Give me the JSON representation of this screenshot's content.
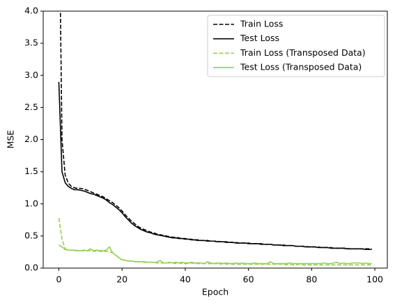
{
  "chart_data": {
    "type": "line",
    "xlabel": "Epoch",
    "ylabel": "MSE",
    "x": [
      0,
      1,
      2,
      3,
      4,
      5,
      6,
      7,
      8,
      9,
      10,
      11,
      12,
      13,
      14,
      15,
      16,
      17,
      18,
      19,
      20,
      21,
      22,
      23,
      24,
      25,
      26,
      27,
      28,
      29,
      30,
      31,
      32,
      33,
      34,
      35,
      36,
      37,
      38,
      39,
      40,
      41,
      42,
      43,
      44,
      45,
      46,
      47,
      48,
      49,
      50,
      51,
      52,
      53,
      54,
      55,
      56,
      57,
      58,
      59,
      60,
      61,
      62,
      63,
      64,
      65,
      66,
      67,
      68,
      69,
      70,
      71,
      72,
      73,
      74,
      75,
      76,
      77,
      78,
      79,
      80,
      81,
      82,
      83,
      84,
      85,
      86,
      87,
      88,
      89,
      90,
      91,
      92,
      93,
      94,
      95,
      96,
      97,
      98,
      99
    ],
    "series": [
      {
        "name": "Train Loss",
        "color": "#000000",
        "dashed": true,
        "values": [
          6.0,
          2.0,
          1.45,
          1.32,
          1.27,
          1.25,
          1.24,
          1.24,
          1.23,
          1.21,
          1.19,
          1.17,
          1.15,
          1.13,
          1.11,
          1.08,
          1.05,
          1.02,
          0.98,
          0.94,
          0.89,
          0.83,
          0.78,
          0.73,
          0.69,
          0.65,
          0.62,
          0.6,
          0.58,
          0.56,
          0.55,
          0.53,
          0.52,
          0.51,
          0.5,
          0.49,
          0.48,
          0.48,
          0.47,
          0.46,
          0.46,
          0.45,
          0.45,
          0.44,
          0.44,
          0.43,
          0.43,
          0.43,
          0.42,
          0.42,
          0.42,
          0.41,
          0.41,
          0.41,
          0.4,
          0.4,
          0.4,
          0.39,
          0.39,
          0.39,
          0.39,
          0.38,
          0.38,
          0.38,
          0.38,
          0.37,
          0.37,
          0.37,
          0.36,
          0.36,
          0.36,
          0.36,
          0.35,
          0.35,
          0.35,
          0.34,
          0.34,
          0.34,
          0.34,
          0.33,
          0.33,
          0.33,
          0.33,
          0.32,
          0.32,
          0.32,
          0.32,
          0.31,
          0.31,
          0.31,
          0.31,
          0.31,
          0.3,
          0.3,
          0.3,
          0.3,
          0.3,
          0.3,
          0.3,
          0.3
        ]
      },
      {
        "name": "Test Loss",
        "color": "#000000",
        "dashed": false,
        "values": [
          2.9,
          1.5,
          1.33,
          1.27,
          1.24,
          1.22,
          1.22,
          1.21,
          1.2,
          1.18,
          1.16,
          1.15,
          1.13,
          1.11,
          1.09,
          1.06,
          1.02,
          0.99,
          0.95,
          0.91,
          0.86,
          0.8,
          0.75,
          0.7,
          0.66,
          0.63,
          0.6,
          0.58,
          0.56,
          0.55,
          0.53,
          0.52,
          0.51,
          0.5,
          0.49,
          0.48,
          0.47,
          0.47,
          0.46,
          0.46,
          0.45,
          0.45,
          0.44,
          0.44,
          0.43,
          0.43,
          0.43,
          0.42,
          0.42,
          0.42,
          0.41,
          0.41,
          0.41,
          0.4,
          0.4,
          0.4,
          0.39,
          0.39,
          0.39,
          0.39,
          0.38,
          0.38,
          0.38,
          0.38,
          0.37,
          0.37,
          0.37,
          0.37,
          0.36,
          0.36,
          0.36,
          0.35,
          0.35,
          0.35,
          0.35,
          0.34,
          0.34,
          0.34,
          0.33,
          0.33,
          0.33,
          0.33,
          0.32,
          0.32,
          0.32,
          0.32,
          0.31,
          0.31,
          0.31,
          0.31,
          0.31,
          0.3,
          0.3,
          0.3,
          0.3,
          0.3,
          0.3,
          0.29,
          0.29,
          0.29
        ]
      },
      {
        "name": "Train Loss (Transposed Data)",
        "color": "#92d050",
        "dashed": true,
        "values": [
          0.78,
          0.45,
          0.3,
          0.28,
          0.28,
          0.27,
          0.27,
          0.27,
          0.27,
          0.27,
          0.27,
          0.26,
          0.27,
          0.26,
          0.26,
          0.26,
          0.25,
          0.24,
          0.2,
          0.16,
          0.13,
          0.12,
          0.11,
          0.11,
          0.1,
          0.1,
          0.1,
          0.09,
          0.09,
          0.09,
          0.09,
          0.08,
          0.08,
          0.08,
          0.08,
          0.08,
          0.08,
          0.07,
          0.08,
          0.07,
          0.07,
          0.07,
          0.08,
          0.07,
          0.07,
          0.07,
          0.07,
          0.07,
          0.07,
          0.07,
          0.07,
          0.06,
          0.07,
          0.06,
          0.07,
          0.06,
          0.06,
          0.06,
          0.06,
          0.06,
          0.06,
          0.06,
          0.06,
          0.06,
          0.06,
          0.06,
          0.06,
          0.06,
          0.06,
          0.06,
          0.06,
          0.06,
          0.05,
          0.06,
          0.05,
          0.05,
          0.06,
          0.05,
          0.05,
          0.05,
          0.05,
          0.05,
          0.05,
          0.05,
          0.05,
          0.05,
          0.05,
          0.05,
          0.05,
          0.05,
          0.05,
          0.05,
          0.05,
          0.05,
          0.05,
          0.05,
          0.05,
          0.05,
          0.05,
          0.05
        ]
      },
      {
        "name": "Test Loss (Transposed Data)",
        "color": "#92d050",
        "dashed": false,
        "values": [
          0.36,
          0.33,
          0.29,
          0.28,
          0.28,
          0.28,
          0.27,
          0.27,
          0.28,
          0.27,
          0.3,
          0.27,
          0.28,
          0.27,
          0.27,
          0.28,
          0.33,
          0.24,
          0.2,
          0.16,
          0.13,
          0.12,
          0.11,
          0.11,
          0.1,
          0.1,
          0.1,
          0.1,
          0.09,
          0.09,
          0.09,
          0.09,
          0.12,
          0.08,
          0.08,
          0.09,
          0.08,
          0.09,
          0.08,
          0.09,
          0.08,
          0.08,
          0.09,
          0.08,
          0.08,
          0.08,
          0.07,
          0.1,
          0.08,
          0.07,
          0.08,
          0.08,
          0.07,
          0.08,
          0.07,
          0.07,
          0.08,
          0.07,
          0.08,
          0.07,
          0.07,
          0.07,
          0.08,
          0.07,
          0.07,
          0.07,
          0.07,
          0.1,
          0.07,
          0.07,
          0.07,
          0.07,
          0.07,
          0.08,
          0.07,
          0.07,
          0.07,
          0.07,
          0.07,
          0.07,
          0.07,
          0.07,
          0.07,
          0.07,
          0.08,
          0.07,
          0.07,
          0.08,
          0.09,
          0.07,
          0.08,
          0.07,
          0.07,
          0.08,
          0.08,
          0.08,
          0.07,
          0.08,
          0.07,
          0.07
        ]
      }
    ],
    "xlim": [
      -4.95,
      103.95
    ],
    "xticks": [
      0,
      20,
      40,
      60,
      80,
      100
    ],
    "ylim": [
      0,
      4
    ],
    "yticks": [
      {
        "value": 0,
        "label": "0.0"
      },
      {
        "value": 0.5,
        "label": "0.5"
      },
      {
        "value": 1,
        "label": "1.0"
      },
      {
        "value": 1.5,
        "label": "1.5"
      },
      {
        "value": 2,
        "label": "2.0"
      },
      {
        "value": 2.5,
        "label": "2.5"
      },
      {
        "value": 3,
        "label": "3.0"
      },
      {
        "value": 3.5,
        "label": "3.5"
      },
      {
        "value": 4,
        "label": "4.0"
      }
    ],
    "legend": "upper right"
  }
}
